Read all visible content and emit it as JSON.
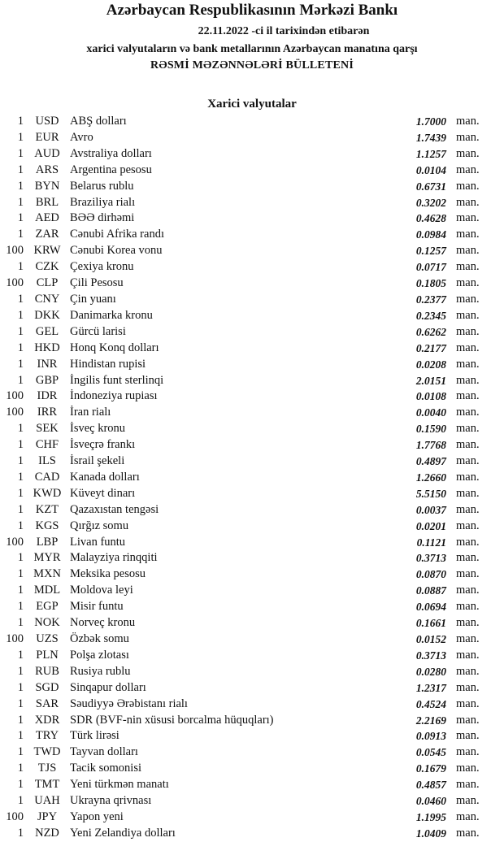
{
  "header": {
    "title": "Azərbaycan Respublikasının Mərkəzi Bankı",
    "date_line": "22.11.2022 -ci il tarixindən etibarən",
    "subtitle": "xarici valyutaların və bank metallarının Azərbaycan manatına qarşı",
    "bulletin": "RƏSMİ MƏZƏNNƏLƏRİ BÜLLETENİ",
    "section": "Xarici valyutalar"
  },
  "rates": [
    {
      "amount": "1",
      "code": "USD",
      "name": "ABŞ dolları",
      "value": "1.7000",
      "unit": "man."
    },
    {
      "amount": "1",
      "code": "EUR",
      "name": "Avro",
      "value": "1.7439",
      "unit": "man."
    },
    {
      "amount": "1",
      "code": "AUD",
      "name": "Avstraliya dolları",
      "value": "1.1257",
      "unit": "man."
    },
    {
      "amount": "1",
      "code": "ARS",
      "name": "Argentina pesosu",
      "value": "0.0104",
      "unit": "man."
    },
    {
      "amount": "1",
      "code": "BYN",
      "name": "Belarus rublu",
      "value": "0.6731",
      "unit": "man."
    },
    {
      "amount": "1",
      "code": "BRL",
      "name": "Braziliya rialı",
      "value": "0.3202",
      "unit": "man."
    },
    {
      "amount": "1",
      "code": "AED",
      "name": "BƏƏ dirhəmi",
      "value": "0.4628",
      "unit": "man."
    },
    {
      "amount": "1",
      "code": "ZAR",
      "name": "Cənubi Afrika randı",
      "value": "0.0984",
      "unit": "man."
    },
    {
      "amount": "100",
      "code": "KRW",
      "name": "Cənubi Korea vonu",
      "value": "0.1257",
      "unit": "man."
    },
    {
      "amount": "1",
      "code": "CZK",
      "name": "Çexiya kronu",
      "value": "0.0717",
      "unit": "man."
    },
    {
      "amount": "100",
      "code": "CLP",
      "name": "Çili Pesosu",
      "value": "0.1805",
      "unit": "man."
    },
    {
      "amount": "1",
      "code": "CNY",
      "name": "Çin yuanı",
      "value": "0.2377",
      "unit": "man."
    },
    {
      "amount": "1",
      "code": "DKK",
      "name": "Danimarka kronu",
      "value": "0.2345",
      "unit": "man."
    },
    {
      "amount": "1",
      "code": "GEL",
      "name": "Gürcü larisi",
      "value": "0.6262",
      "unit": "man."
    },
    {
      "amount": "1",
      "code": "HKD",
      "name": "Honq Konq dolları",
      "value": "0.2177",
      "unit": "man."
    },
    {
      "amount": "1",
      "code": "INR",
      "name": "Hindistan rupisi",
      "value": "0.0208",
      "unit": "man."
    },
    {
      "amount": "1",
      "code": "GBP",
      "name": "İngilis funt sterlinqi",
      "value": "2.0151",
      "unit": "man."
    },
    {
      "amount": "100",
      "code": "IDR",
      "name": "İndoneziya rupiası",
      "value": "0.0108",
      "unit": "man."
    },
    {
      "amount": "100",
      "code": "IRR",
      "name": "İran rialı",
      "value": "0.0040",
      "unit": "man."
    },
    {
      "amount": "1",
      "code": "SEK",
      "name": "İsveç kronu",
      "value": "0.1590",
      "unit": "man."
    },
    {
      "amount": "1",
      "code": "CHF",
      "name": "İsveçrə frankı",
      "value": "1.7768",
      "unit": "man."
    },
    {
      "amount": "1",
      "code": "ILS",
      "name": "İsrail şekeli",
      "value": "0.4897",
      "unit": "man."
    },
    {
      "amount": "1",
      "code": "CAD",
      "name": "Kanada dolları",
      "value": "1.2660",
      "unit": "man."
    },
    {
      "amount": "1",
      "code": "KWD",
      "name": "Küveyt dinarı",
      "value": "5.5150",
      "unit": "man."
    },
    {
      "amount": "1",
      "code": "KZT",
      "name": "Qazaxıstan tengəsi",
      "value": "0.0037",
      "unit": "man."
    },
    {
      "amount": "1",
      "code": "KGS",
      "name": "Qırğız somu",
      "value": "0.0201",
      "unit": "man."
    },
    {
      "amount": "100",
      "code": "LBP",
      "name": "Livan funtu",
      "value": "0.1121",
      "unit": "man."
    },
    {
      "amount": "1",
      "code": "MYR",
      "name": "Malayziya rinqqiti",
      "value": "0.3713",
      "unit": "man."
    },
    {
      "amount": "1",
      "code": "MXN",
      "name": "Meksika pesosu",
      "value": "0.0870",
      "unit": "man."
    },
    {
      "amount": "1",
      "code": "MDL",
      "name": "Moldova leyi",
      "value": "0.0887",
      "unit": "man."
    },
    {
      "amount": "1",
      "code": "EGP",
      "name": "Misir funtu",
      "value": "0.0694",
      "unit": "man."
    },
    {
      "amount": "1",
      "code": "NOK",
      "name": "Norveç kronu",
      "value": "0.1661",
      "unit": "man."
    },
    {
      "amount": "100",
      "code": "UZS",
      "name": "Özbək somu",
      "value": "0.0152",
      "unit": "man."
    },
    {
      "amount": "1",
      "code": "PLN",
      "name": "Polşa zlotası",
      "value": "0.3713",
      "unit": "man."
    },
    {
      "amount": "1",
      "code": "RUB",
      "name": "Rusiya rublu",
      "value": "0.0280",
      "unit": "man."
    },
    {
      "amount": "1",
      "code": "SGD",
      "name": "Sinqapur dolları",
      "value": "1.2317",
      "unit": "man."
    },
    {
      "amount": "1",
      "code": "SAR",
      "name": "Səudiyyə Ərəbistanı rialı",
      "value": "0.4524",
      "unit": "man."
    },
    {
      "amount": "1",
      "code": "XDR",
      "name": "SDR (BVF-nin xüsusi borcalma hüquqları)",
      "value": "2.2169",
      "unit": "man."
    },
    {
      "amount": "1",
      "code": "TRY",
      "name": "Türk lirəsi",
      "value": "0.0913",
      "unit": "man."
    },
    {
      "amount": "1",
      "code": "TWD",
      "name": "Tayvan dolları",
      "value": "0.0545",
      "unit": "man."
    },
    {
      "amount": "1",
      "code": "TJS",
      "name": "Tacik somonisi",
      "value": "0.1679",
      "unit": "man."
    },
    {
      "amount": "1",
      "code": "TMT",
      "name": "Yeni türkmən manatı",
      "value": "0.4857",
      "unit": "man."
    },
    {
      "amount": "1",
      "code": "UAH",
      "name": "Ukrayna qrivnası",
      "value": "0.0460",
      "unit": "man."
    },
    {
      "amount": "100",
      "code": "JPY",
      "name": "Yapon yeni",
      "value": "1.1995",
      "unit": "man."
    },
    {
      "amount": "1",
      "code": "NZD",
      "name": "Yeni Zelandiya dolları",
      "value": "1.0409",
      "unit": "man."
    }
  ]
}
